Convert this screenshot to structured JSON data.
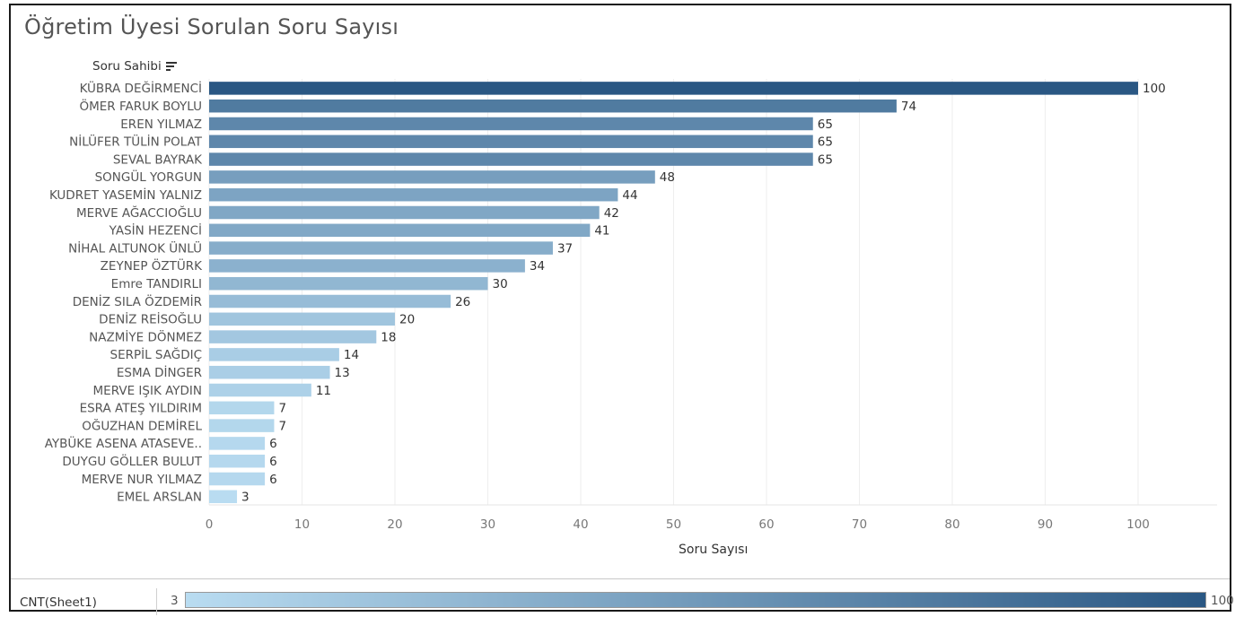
{
  "title": "Öğretim Üyesi Sorulan Soru Sayısı",
  "row_header": "Soru Sahibi",
  "legend": {
    "label": "CNT(Sheet1)",
    "min": "3",
    "max": "100",
    "color_low": "#b9dcf1",
    "color_high": "#2a5783"
  },
  "chart_data": {
    "type": "bar",
    "orientation": "horizontal",
    "title": "Öğretim Üyesi Sorulan Soru Sayısı",
    "ylabel": "Soru Sahibi",
    "xlabel": "Soru Sayısı",
    "xlim": [
      0,
      106
    ],
    "xticks": [
      0,
      10,
      20,
      30,
      40,
      50,
      60,
      70,
      80,
      90,
      100
    ],
    "grid": "vertical",
    "categories": [
      "KÜBRA DEĞİRMENCİ",
      "ÖMER FARUK BOYLU",
      "EREN YILMAZ",
      "NİLÜFER TÜLİN POLAT",
      "SEVAL BAYRAK",
      "SONGÜL YORGUN",
      "KUDRET YASEMİN YALNIZ",
      "MERVE AĞACCIOĞLU",
      "YASİN HEZENCİ",
      "NİHAL ALTUNOK ÜNLÜ",
      "ZEYNEP ÖZTÜRK",
      "Emre TANDIRLI",
      "DENİZ SILA ÖZDEMİR",
      "DENİZ REİSOĞLU",
      "NAZMİYE DÖNMEZ",
      "SERPİL SAĞDIÇ",
      "ESMA DİNGER",
      "MERVE IŞIK AYDIN",
      "ESRA ATEŞ YILDIRIM",
      "OĞUZHAN DEMİREL",
      "AYBÜKE ASENA ATASEVE..",
      "DUYGU GÖLLER BULUT",
      "MERVE NUR YILMAZ",
      "EMEL ARSLAN"
    ],
    "values": [
      100,
      74,
      65,
      65,
      65,
      48,
      44,
      42,
      41,
      37,
      34,
      30,
      26,
      20,
      18,
      14,
      13,
      11,
      7,
      7,
      6,
      6,
      6,
      3
    ]
  }
}
